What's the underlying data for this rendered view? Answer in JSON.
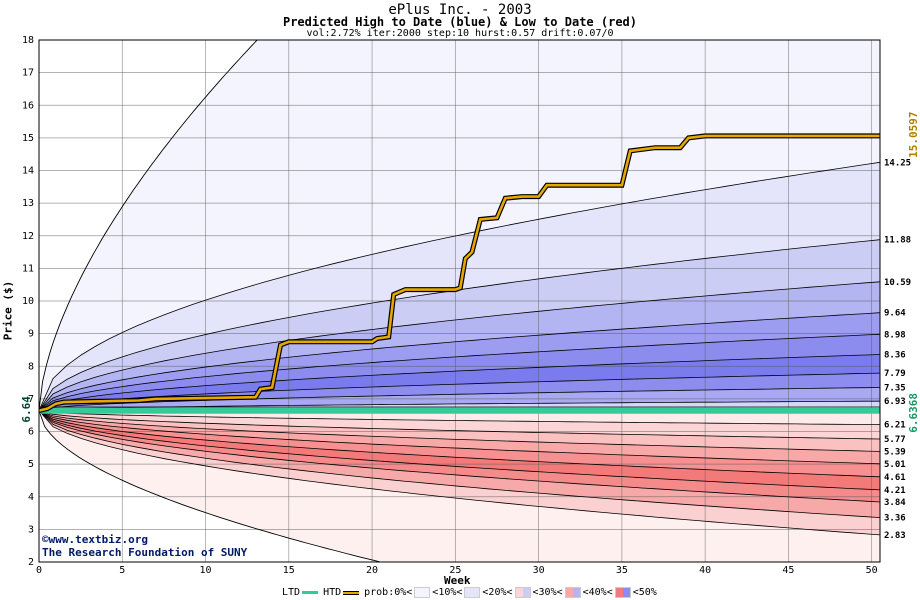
{
  "chart_data": {
    "type": "area",
    "title": "ePlus Inc. - 2003",
    "subtitle": "Predicted High to Date (blue) &  Low to Date (red)",
    "params": "vol:2.72% iter:2000 step:10 hurst:0.57 drift:0.07/0",
    "xlabel": "Week",
    "ylabel": "Price ($)",
    "xlim": [
      0,
      50.5
    ],
    "ylim": [
      2,
      18
    ],
    "x_ticks": [
      0,
      5,
      10,
      15,
      20,
      25,
      30,
      35,
      40,
      45,
      50
    ],
    "y_ticks": [
      2,
      3,
      4,
      5,
      6,
      7,
      8,
      9,
      10,
      11,
      12,
      13,
      14,
      15,
      16,
      17,
      18
    ],
    "grid": true,
    "start_price": 6.64,
    "start_label": "6.64",
    "htd_series": {
      "label": "15.0597",
      "color": "#e6a800",
      "points": [
        [
          0,
          6.64
        ],
        [
          0.5,
          6.7
        ],
        [
          1,
          6.85
        ],
        [
          1.5,
          6.9
        ],
        [
          6,
          6.95
        ],
        [
          7,
          7.0
        ],
        [
          13,
          7.05
        ],
        [
          13.3,
          7.3
        ],
        [
          14,
          7.35
        ],
        [
          14.5,
          8.65
        ],
        [
          15,
          8.75
        ],
        [
          20,
          8.75
        ],
        [
          20.3,
          8.85
        ],
        [
          21,
          8.9
        ],
        [
          21.3,
          10.2
        ],
        [
          22,
          10.35
        ],
        [
          25,
          10.35
        ],
        [
          25.3,
          10.4
        ],
        [
          25.6,
          11.3
        ],
        [
          26,
          11.5
        ],
        [
          26.5,
          12.5
        ],
        [
          27.5,
          12.55
        ],
        [
          28,
          13.15
        ],
        [
          29,
          13.2
        ],
        [
          30,
          13.2
        ],
        [
          30.5,
          13.55
        ],
        [
          35,
          13.55
        ],
        [
          35.5,
          14.6
        ],
        [
          37,
          14.7
        ],
        [
          38.5,
          14.7
        ],
        [
          39,
          15.0
        ],
        [
          40,
          15.06
        ],
        [
          50.5,
          15.06
        ]
      ]
    },
    "ltd_series": {
      "label": "6.6368",
      "color": "#33cc99",
      "value": 6.6368
    },
    "high_quantiles": [
      {
        "end": 14.25,
        "label": "14.25"
      },
      {
        "end": 11.88,
        "label": "11.88"
      },
      {
        "end": 10.59,
        "label": "10.59"
      },
      {
        "end": 9.64,
        "label": "9.64"
      },
      {
        "end": 8.98,
        "label": "8.98"
      },
      {
        "end": 8.36,
        "label": "8.36"
      },
      {
        "end": 7.79,
        "label": "7.79"
      },
      {
        "end": 7.35,
        "label": "7.35"
      },
      {
        "end": 6.93,
        "label": "6.93"
      }
    ],
    "low_quantiles": [
      {
        "end": 6.21,
        "label": "6.21"
      },
      {
        "end": 5.77,
        "label": "5.77"
      },
      {
        "end": 5.39,
        "label": "5.39"
      },
      {
        "end": 5.01,
        "label": "5.01"
      },
      {
        "end": 4.61,
        "label": "4.61"
      },
      {
        "end": 4.21,
        "label": "4.21"
      },
      {
        "end": 3.84,
        "label": "3.84"
      },
      {
        "end": 3.36,
        "label": "3.36"
      },
      {
        "end": 2.83,
        "label": "2.83"
      }
    ],
    "outer_high_envelope": {
      "end_at_week": 13.1,
      "end_value": 18
    },
    "outer_low_envelope": {
      "end_at_week": 20.5,
      "end_value": 2
    }
  },
  "credits": {
    "line1": "©www.textbiz.org",
    "line2": "The Research Foundation of SUNY"
  },
  "legend": {
    "ltd": "LTD",
    "htd": "HTD",
    "prob": "prob:",
    "bins": [
      "0%<",
      "<10%<",
      "<20%<",
      "<30%<",
      "<40%<",
      "<50%"
    ]
  },
  "colors": {
    "high_bands": [
      "#f4f4ff",
      "#e4e4fa",
      "#cccdf5",
      "#b3b4f2",
      "#9c9df0",
      "#8b8cee",
      "#7a7bec",
      "#8c8dee",
      "#a8a9f2",
      "#d5d6f8"
    ],
    "low_bands": [
      "#fdebeb",
      "#fcd6d6",
      "#fbc1c1",
      "#f9a8a8",
      "#f79090",
      "#f47a7a",
      "#f48a8a",
      "#f7a8a8",
      "#fbd0d0",
      "#fff4f4"
    ],
    "htd": "#e6a800",
    "ltd": "#33cc99"
  }
}
